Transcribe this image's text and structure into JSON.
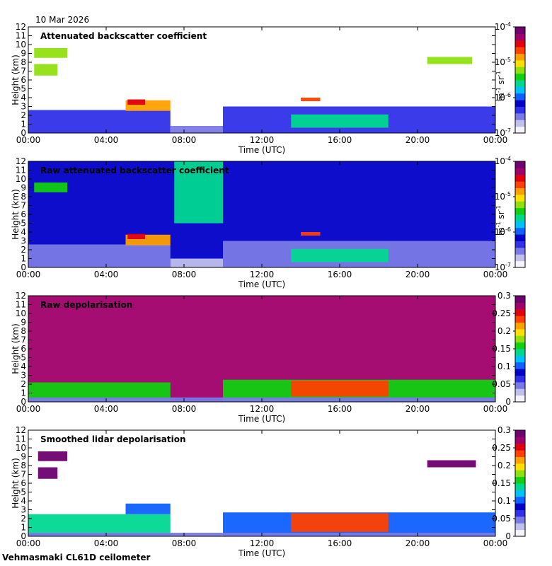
{
  "date": "10 Mar 2026",
  "footer": "Vehmasmaki CL61D ceilometer",
  "colors": {
    "colormap": [
      "#f4f4fc",
      "#c0c0ec",
      "#7a7ae6",
      "#3030e8",
      "#0000c8",
      "#1060ff",
      "#00c0ff",
      "#00d890",
      "#10d010",
      "#90e010",
      "#ffe000",
      "#ffa000",
      "#ff4000",
      "#e00010",
      "#a0006a",
      "#6e0070"
    ]
  },
  "chart_data": [
    {
      "type": "heatmap",
      "title": "Attenuated backscatter coefficient",
      "xlabel": "Time (UTC)",
      "ylabel": "Height (km)",
      "xlim": [
        0,
        24
      ],
      "ylim": [
        0,
        12
      ],
      "x_ticks": [
        0,
        4,
        8,
        12,
        16,
        20,
        24
      ],
      "x_tick_labels": [
        "00:00",
        "04:00",
        "08:00",
        "12:00",
        "16:00",
        "20:00",
        "00:00"
      ],
      "y_ticks": [
        0,
        1,
        2,
        3,
        4,
        5,
        6,
        7,
        8,
        9,
        10,
        11,
        12
      ],
      "y_tick_labels": [
        "0",
        "1",
        "2",
        "3",
        "4",
        "5",
        "6",
        "7",
        "8",
        "9",
        "10",
        "11",
        "12"
      ],
      "colorbar": {
        "scale": "log",
        "min": "10^-7",
        "max": "10^-4",
        "ticks": [
          {
            "base": "10",
            "exp": "-4"
          },
          {
            "base": "10",
            "exp": "-5"
          },
          {
            "base": "10",
            "exp": "-6"
          },
          {
            "base": "10",
            "exp": "-7"
          }
        ],
        "unit": "m",
        "unit_exp1": "-1",
        "unit_mid": " sr",
        "unit_exp2": "-1"
      },
      "features": [
        {
          "start": 0,
          "end": 7.3,
          "bottom": 0,
          "top": 2.6,
          "level": 3
        },
        {
          "start": 7.3,
          "end": 10.0,
          "bottom": 0,
          "top": 0.8,
          "level": 2
        },
        {
          "start": 10.0,
          "end": 24,
          "bottom": 0,
          "top": 3.0,
          "level": 3
        },
        {
          "start": 5.0,
          "end": 7.3,
          "bottom": 2.5,
          "top": 3.7,
          "level": 11
        },
        {
          "start": 5.1,
          "end": 6.0,
          "bottom": 3.2,
          "top": 3.8,
          "level": 13
        },
        {
          "start": 14.0,
          "end": 15.0,
          "bottom": 3.6,
          "top": 4.0,
          "level": 12
        },
        {
          "start": 13.5,
          "end": 18.5,
          "bottom": 0.6,
          "top": 2.1,
          "level": 7
        },
        {
          "start": 0.3,
          "end": 2.0,
          "bottom": 8.5,
          "top": 9.6,
          "level": 9
        },
        {
          "start": 0.3,
          "end": 1.5,
          "bottom": 6.5,
          "top": 7.8,
          "level": 9
        },
        {
          "start": 20.5,
          "end": 22.8,
          "bottom": 7.8,
          "top": 8.6,
          "level": 9
        }
      ]
    },
    {
      "type": "heatmap",
      "title": "Raw attenuated backscatter coefficient",
      "xlabel": "Time (UTC)",
      "ylabel": "Height (km)",
      "xlim": [
        0,
        24
      ],
      "ylim": [
        0,
        12
      ],
      "x_ticks": [
        0,
        4,
        8,
        12,
        16,
        20,
        24
      ],
      "x_tick_labels": [
        "00:00",
        "04:00",
        "08:00",
        "12:00",
        "16:00",
        "20:00",
        "00:00"
      ],
      "y_ticks": [
        0,
        1,
        2,
        3,
        4,
        5,
        6,
        7,
        8,
        9,
        10,
        11,
        12
      ],
      "y_tick_labels": [
        "0",
        "1",
        "2",
        "3",
        "4",
        "5",
        "6",
        "7",
        "8",
        "9",
        "10",
        "11",
        "12"
      ],
      "colorbar": {
        "scale": "log",
        "min": "10^-7",
        "max": "10^-4",
        "ticks": [
          {
            "base": "10",
            "exp": "-4"
          },
          {
            "base": "10",
            "exp": "-5"
          },
          {
            "base": "10",
            "exp": "-6"
          },
          {
            "base": "10",
            "exp": "-7"
          }
        ],
        "unit": "m",
        "unit_exp1": "-1",
        "unit_mid": " sr",
        "unit_exp2": "-1"
      },
      "features": [
        {
          "start": 0,
          "end": 24,
          "bottom": 0,
          "top": 12,
          "level": 4
        },
        {
          "start": 0,
          "end": 7.3,
          "bottom": 0,
          "top": 2.6,
          "level": 2
        },
        {
          "start": 7.3,
          "end": 10.0,
          "bottom": 0,
          "top": 1.0,
          "level": 1
        },
        {
          "start": 10.0,
          "end": 24,
          "bottom": 0,
          "top": 3.0,
          "level": 2
        },
        {
          "start": 5.0,
          "end": 7.3,
          "bottom": 2.5,
          "top": 3.7,
          "level": 11
        },
        {
          "start": 5.1,
          "end": 6.0,
          "bottom": 3.2,
          "top": 3.8,
          "level": 13
        },
        {
          "start": 14.0,
          "end": 15.0,
          "bottom": 3.6,
          "top": 4.0,
          "level": 12
        },
        {
          "start": 13.5,
          "end": 18.5,
          "bottom": 0.6,
          "top": 2.1,
          "level": 7
        },
        {
          "start": 0.3,
          "end": 2.0,
          "bottom": 8.5,
          "top": 9.6,
          "level": 8
        },
        {
          "start": 7.5,
          "end": 10.0,
          "bottom": 5.0,
          "top": 12.0,
          "level": 7
        }
      ]
    },
    {
      "type": "heatmap",
      "title": "Raw depolarisation",
      "xlabel": "Time (UTC)",
      "ylabel": "Height (km)",
      "xlim": [
        0,
        24
      ],
      "ylim": [
        0,
        12
      ],
      "x_ticks": [
        0,
        4,
        8,
        12,
        16,
        20,
        24
      ],
      "x_tick_labels": [
        "00:00",
        "04:00",
        "08:00",
        "12:00",
        "16:00",
        "20:00",
        "00:00"
      ],
      "y_ticks": [
        0,
        1,
        2,
        3,
        4,
        5,
        6,
        7,
        8,
        9,
        10,
        11,
        12
      ],
      "y_tick_labels": [
        "0",
        "1",
        "2",
        "3",
        "4",
        "5",
        "6",
        "7",
        "8",
        "9",
        "10",
        "11",
        "12"
      ],
      "colorbar": {
        "scale": "linear",
        "min": 0,
        "max": 0.3,
        "ticks": [
          "0.3",
          "0.25",
          "0.2",
          "0.15",
          "0.1",
          "0.05",
          "0"
        ]
      },
      "features": [
        {
          "start": 0,
          "end": 24,
          "bottom": 0,
          "top": 12,
          "level": 14
        },
        {
          "start": 0,
          "end": 7.3,
          "bottom": 0,
          "top": 2.2,
          "level": 8
        },
        {
          "start": 10.0,
          "end": 24,
          "bottom": 0,
          "top": 2.5,
          "level": 8
        },
        {
          "start": 13.5,
          "end": 18.5,
          "bottom": 0.6,
          "top": 2.4,
          "level": 12
        },
        {
          "start": 0,
          "end": 24,
          "bottom": 0,
          "top": 0.5,
          "level": 2
        }
      ]
    },
    {
      "type": "heatmap",
      "title": "Smoothed lidar depolarisation",
      "xlabel": "Time (UTC)",
      "ylabel": "Height (km)",
      "xlim": [
        0,
        24
      ],
      "ylim": [
        0,
        12
      ],
      "x_ticks": [
        0,
        4,
        8,
        12,
        16,
        20,
        24
      ],
      "x_tick_labels": [
        "00:00",
        "04:00",
        "08:00",
        "12:00",
        "16:00",
        "20:00",
        "00:00"
      ],
      "y_ticks": [
        0,
        1,
        2,
        3,
        4,
        5,
        6,
        7,
        8,
        9,
        10,
        11,
        12
      ],
      "y_tick_labels": [
        "0",
        "1",
        "2",
        "3",
        "4",
        "5",
        "6",
        "7",
        "8",
        "9",
        "10",
        "11",
        "12"
      ],
      "colorbar": {
        "scale": "linear",
        "min": 0,
        "max": 0.3,
        "ticks": [
          "0.3",
          "0.25",
          "0.2",
          "0.15",
          "0.1",
          "0.05",
          "0"
        ]
      },
      "features": [
        {
          "start": 0,
          "end": 7.3,
          "bottom": 0,
          "top": 2.5,
          "level": 7
        },
        {
          "start": 10.0,
          "end": 24,
          "bottom": 0,
          "top": 2.7,
          "level": 5
        },
        {
          "start": 13.5,
          "end": 18.5,
          "bottom": 0.5,
          "top": 2.6,
          "level": 12
        },
        {
          "start": 0.5,
          "end": 2.0,
          "bottom": 8.5,
          "top": 9.6,
          "level": 15
        },
        {
          "start": 0.5,
          "end": 1.5,
          "bottom": 6.5,
          "top": 7.8,
          "level": 15
        },
        {
          "start": 20.5,
          "end": 23.0,
          "bottom": 7.8,
          "top": 8.6,
          "level": 15
        },
        {
          "start": 5.0,
          "end": 7.3,
          "bottom": 2.5,
          "top": 3.7,
          "level": 5
        },
        {
          "start": 0,
          "end": 24,
          "bottom": 0,
          "top": 0.4,
          "level": 2
        }
      ]
    }
  ]
}
